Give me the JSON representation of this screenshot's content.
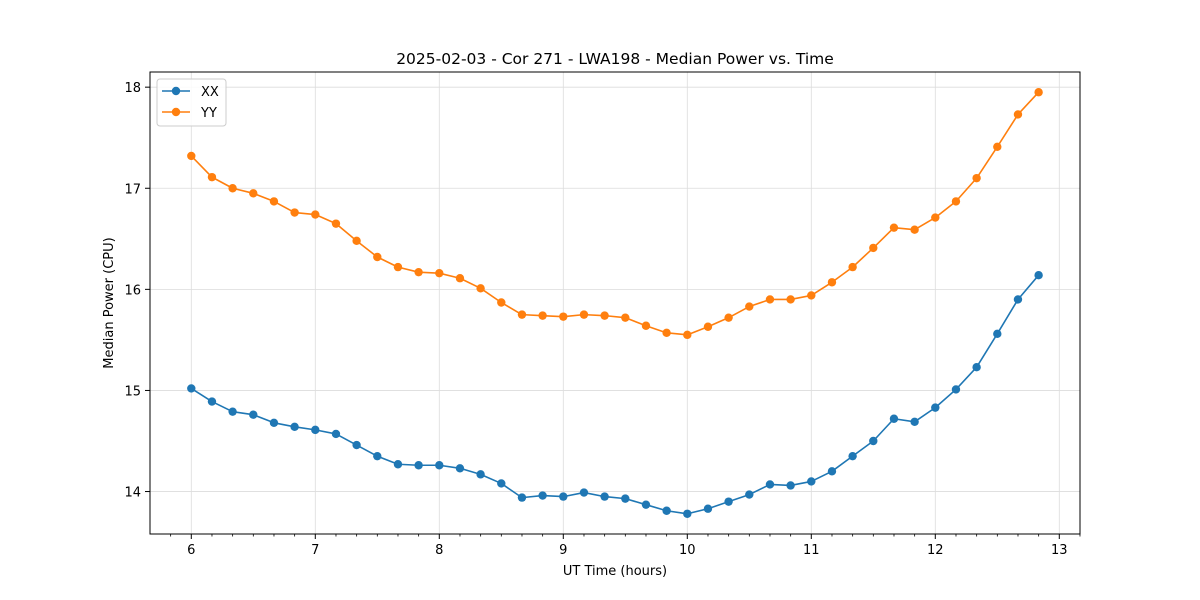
{
  "chart_data": {
    "type": "line",
    "title": "2025-02-03 - Cor 271 - LWA198 - Median Power vs. Time",
    "xlabel": "UT Time (hours)",
    "ylabel": "Median Power (CPU)",
    "xlim": [
      5.667,
      13.167
    ],
    "ylim": [
      13.58,
      18.15
    ],
    "grid": true,
    "legend_position": "upper-left",
    "xticks": [
      6,
      7,
      8,
      9,
      10,
      11,
      12,
      13
    ],
    "xtick_labels": [
      "6",
      "7",
      "8",
      "9",
      "10",
      "11",
      "12",
      "13"
    ],
    "yticks": [
      14,
      15,
      16,
      17,
      18
    ],
    "ytick_labels": [
      "14",
      "15",
      "16",
      "17",
      "18"
    ],
    "x_minor_step": 0.16667,
    "x": [
      6.0,
      6.1667,
      6.3333,
      6.5,
      6.6667,
      6.8333,
      7.0,
      7.1667,
      7.3333,
      7.5,
      7.6667,
      7.8333,
      8.0,
      8.1667,
      8.3333,
      8.5,
      8.6667,
      8.8333,
      9.0,
      9.1667,
      9.3333,
      9.5,
      9.6667,
      9.8333,
      10.0,
      10.1667,
      10.3333,
      10.5,
      10.6667,
      10.8333,
      11.0,
      11.1667,
      11.3333,
      11.5,
      11.6667,
      11.8333,
      12.0,
      12.1667,
      12.3333,
      12.5,
      12.6667,
      12.8333
    ],
    "series": [
      {
        "name": "XX",
        "color": "#1f77b4",
        "values": [
          15.02,
          14.89,
          14.79,
          14.76,
          14.68,
          14.64,
          14.61,
          14.57,
          14.46,
          14.35,
          14.27,
          14.26,
          14.26,
          14.23,
          14.17,
          14.08,
          13.94,
          13.96,
          13.95,
          13.99,
          13.95,
          13.93,
          13.87,
          13.81,
          13.78,
          13.83,
          13.9,
          13.97,
          14.07,
          14.06,
          14.1,
          14.2,
          14.35,
          14.5,
          14.72,
          14.69,
          14.83,
          15.01,
          15.23,
          15.56,
          15.9,
          16.14
        ]
      },
      {
        "name": "YY",
        "color": "#ff7f0e",
        "values": [
          17.32,
          17.11,
          17.0,
          16.95,
          16.87,
          16.76,
          16.74,
          16.65,
          16.48,
          16.32,
          16.22,
          16.17,
          16.16,
          16.11,
          16.01,
          15.87,
          15.75,
          15.74,
          15.73,
          15.75,
          15.74,
          15.72,
          15.64,
          15.57,
          15.55,
          15.63,
          15.72,
          15.83,
          15.9,
          15.9,
          15.94,
          16.07,
          16.22,
          16.41,
          16.61,
          16.59,
          16.71,
          16.87,
          17.1,
          17.41,
          17.73,
          17.95
        ]
      }
    ]
  }
}
